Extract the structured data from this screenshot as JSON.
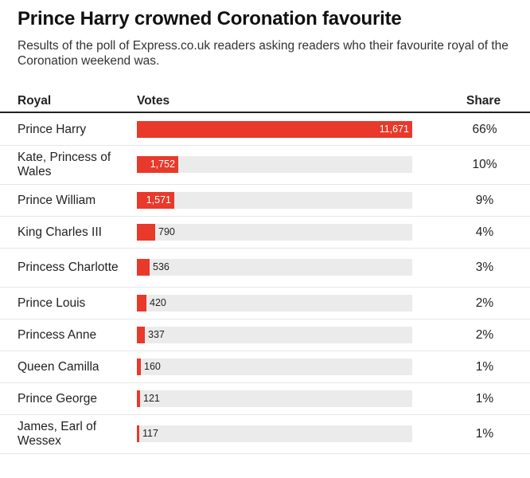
{
  "chart_data": {
    "type": "table",
    "title": "Prince Harry crowned Coronation favourite",
    "subtitle": "Results of the poll of Express.co.uk readers asking readers who their favourite royal of the Coronation weekend was.",
    "columns": [
      "Royal",
      "Votes",
      "Share"
    ],
    "bar_color": "#e8392a",
    "track_color": "#ebebeb",
    "rows": [
      {
        "royal": "Prince Harry",
        "votes": 11671,
        "votes_label": "11,671",
        "share": "66%"
      },
      {
        "royal": "Kate, Princess of Wales",
        "votes": 1752,
        "votes_label": "1,752",
        "share": "10%"
      },
      {
        "royal": "Prince William",
        "votes": 1571,
        "votes_label": "1,571",
        "share": "9%"
      },
      {
        "royal": "King Charles III",
        "votes": 790,
        "votes_label": "790",
        "share": "4%"
      },
      {
        "royal": "Princess Charlotte",
        "votes": 536,
        "votes_label": "536",
        "share": "3%"
      },
      {
        "royal": "Prince Louis",
        "votes": 420,
        "votes_label": "420",
        "share": "2%"
      },
      {
        "royal": "Princess Anne",
        "votes": 337,
        "votes_label": "337",
        "share": "2%"
      },
      {
        "royal": "Queen Camilla",
        "votes": 160,
        "votes_label": "160",
        "share": "1%"
      },
      {
        "royal": "Prince George",
        "votes": 121,
        "votes_label": "121",
        "share": "1%"
      },
      {
        "royal": "James, Earl of Wessex",
        "votes": 117,
        "votes_label": "117",
        "share": "1%"
      }
    ]
  }
}
